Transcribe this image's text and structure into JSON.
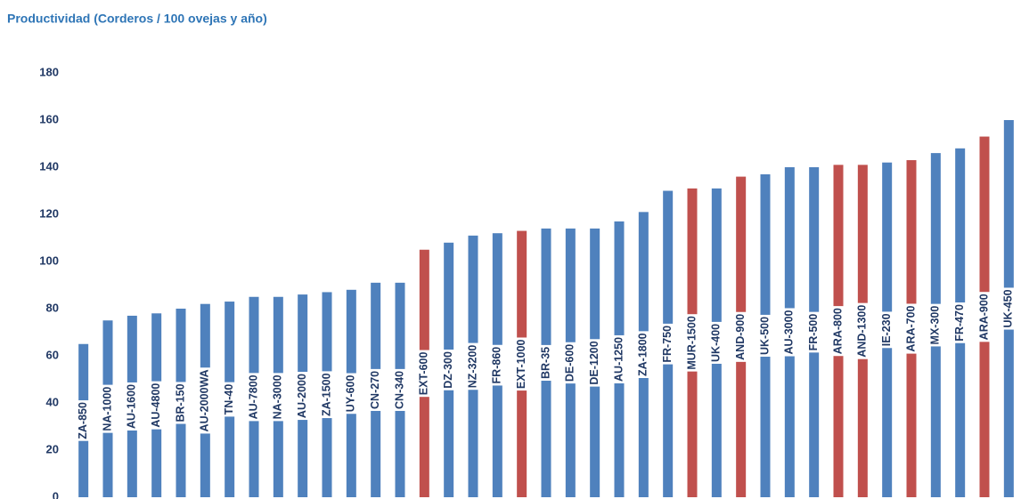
{
  "chart_data": {
    "type": "bar",
    "title": "Productividad (Corderos / 100 ovejas y año)",
    "categories": [
      "ZA-850",
      "NA-1000",
      "AU-1600",
      "AU-4800",
      "BR-150",
      "AU-2000WA",
      "TN-40",
      "AU-7800",
      "NA-3000",
      "AU-2000",
      "ZA-1500",
      "UY-600",
      "CN-270",
      "CN-340",
      "EXT-600",
      "DZ-300",
      "NZ-3200",
      "FR-860",
      "EXT-1000",
      "BR-35",
      "DE-600",
      "DE-1200",
      "AU-1250",
      "ZA-1800",
      "FR-750",
      "MUR-1500",
      "UK-400",
      "AND-900",
      "UK-500",
      "AU-3000",
      "FR-500",
      "ARA-800",
      "AND-1300",
      "IE-230",
      "ARA-700",
      "MX-300",
      "FR-470",
      "ARA-900",
      "UK-450"
    ],
    "values": [
      65,
      75,
      77,
      78,
      80,
      82,
      83,
      85,
      85,
      86,
      87,
      88,
      91,
      91,
      105,
      108,
      111,
      112,
      113,
      114,
      114,
      114,
      117,
      121,
      130,
      131,
      131,
      136,
      137,
      140,
      140,
      141,
      141,
      142,
      143,
      146,
      148,
      153,
      160
    ],
    "colors": [
      "#4f81bd",
      "#4f81bd",
      "#4f81bd",
      "#4f81bd",
      "#4f81bd",
      "#4f81bd",
      "#4f81bd",
      "#4f81bd",
      "#4f81bd",
      "#4f81bd",
      "#4f81bd",
      "#4f81bd",
      "#4f81bd",
      "#4f81bd",
      "#c0504d",
      "#4f81bd",
      "#4f81bd",
      "#4f81bd",
      "#c0504d",
      "#4f81bd",
      "#4f81bd",
      "#4f81bd",
      "#4f81bd",
      "#4f81bd",
      "#4f81bd",
      "#c0504d",
      "#4f81bd",
      "#c0504d",
      "#4f81bd",
      "#4f81bd",
      "#4f81bd",
      "#c0504d",
      "#c0504d",
      "#4f81bd",
      "#c0504d",
      "#4f81bd",
      "#4f81bd",
      "#c0504d",
      "#4f81bd"
    ],
    "ylim": [
      0,
      180
    ],
    "yticks": [
      0,
      20,
      40,
      60,
      80,
      100,
      120,
      140,
      160,
      180
    ],
    "grid": false
  }
}
